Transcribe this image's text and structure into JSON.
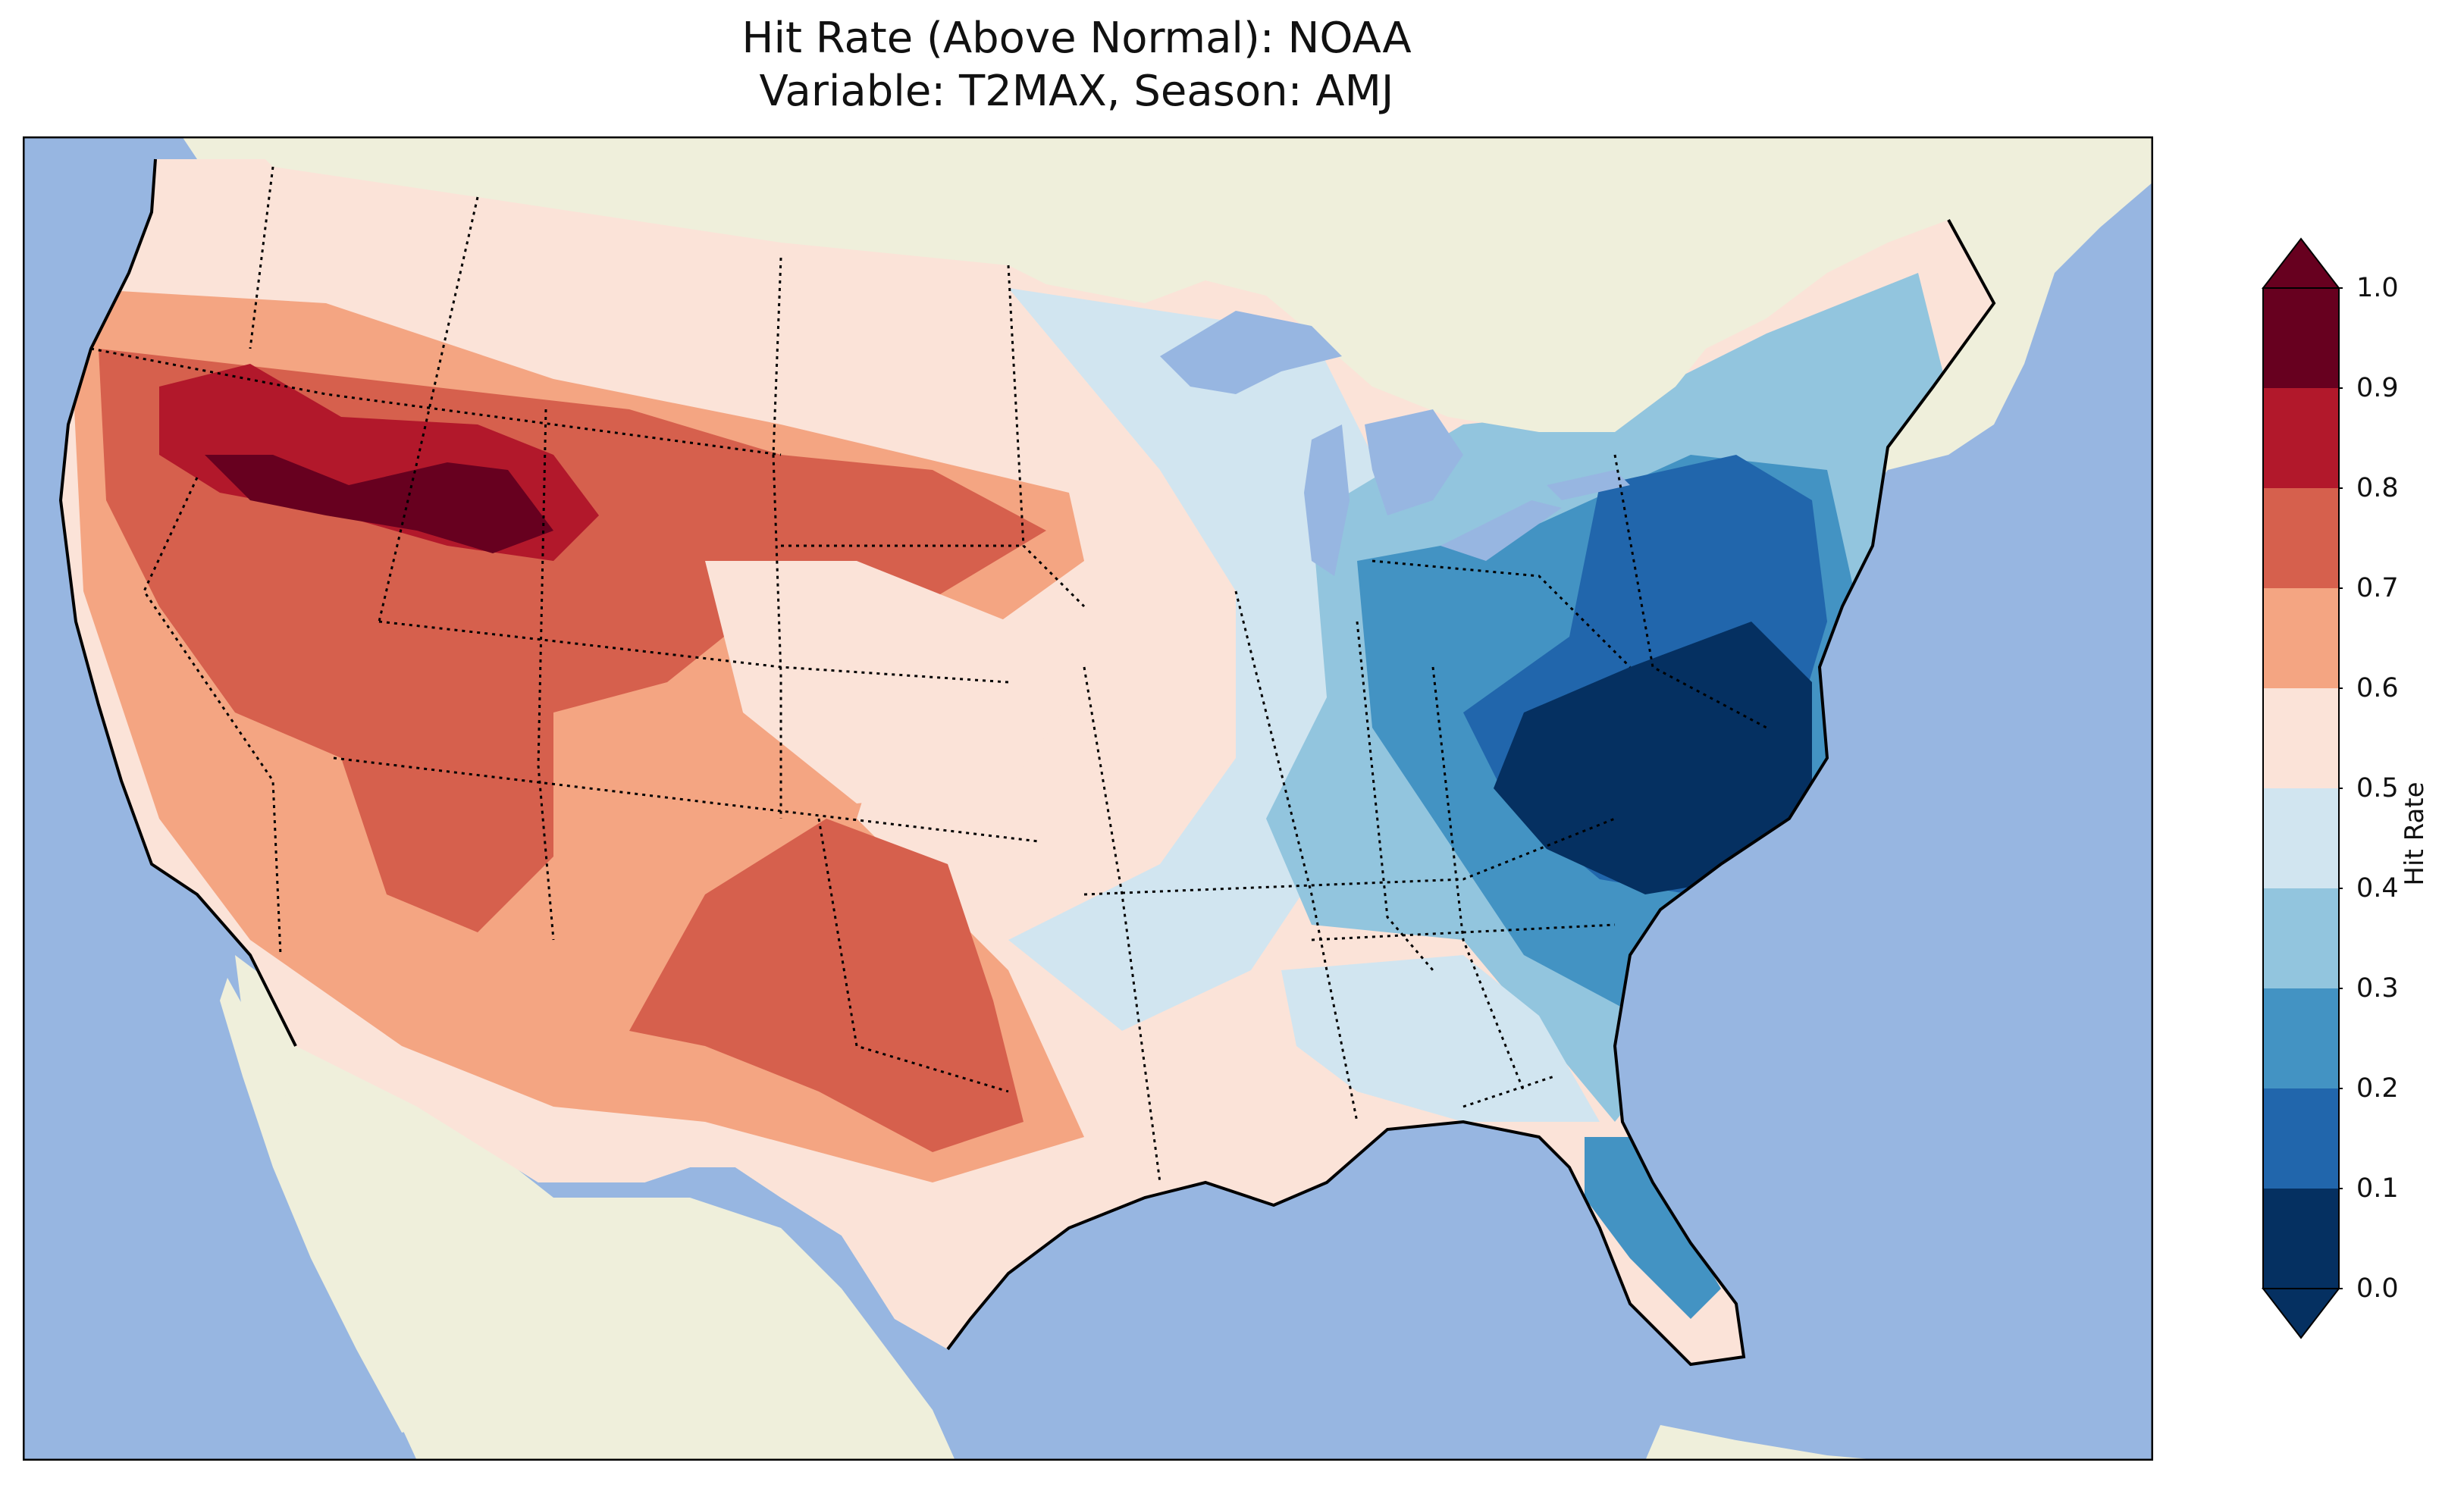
{
  "title": {
    "line1": "Hit Rate (Above Normal): NOAA",
    "line2": "Variable: T2MAX, Season: AMJ"
  },
  "colorbar": {
    "label": "Hit Rate",
    "ticks": [
      "0.0",
      "0.1",
      "0.2",
      "0.3",
      "0.4",
      "0.5",
      "0.6",
      "0.7",
      "0.8",
      "0.9",
      "1.0"
    ],
    "colors": [
      "#053061",
      "#2166ac",
      "#4393c3",
      "#92c5de",
      "#d1e5f0",
      "#fbe3d8",
      "#f4a582",
      "#d6604d",
      "#b2182b",
      "#67001f"
    ]
  },
  "map": {
    "ocean_color": "#97b6e1",
    "land_color": "#efefdb",
    "region": "Contiguous United States"
  }
}
